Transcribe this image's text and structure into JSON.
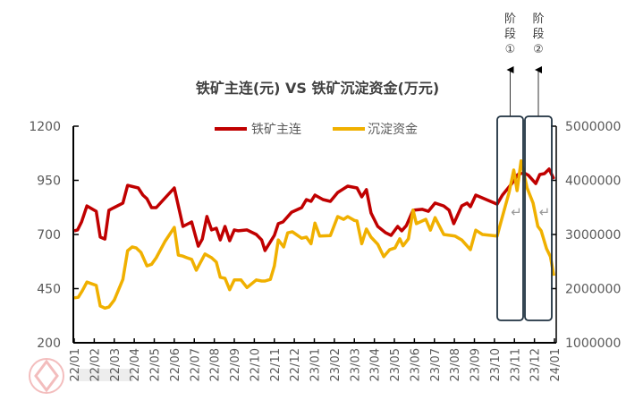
{
  "chart_data": {
    "type": "line",
    "title": "铁矿主连(元) VS 铁矿沉淀资金(万元)",
    "xlabel": "",
    "ylabel": "",
    "y2label": "",
    "legend_position": "top",
    "grid": false,
    "x_tick_labels": [
      "22/01",
      "22/02",
      "22/03",
      "22/04",
      "22/05",
      "22/06",
      "22/07",
      "22/08",
      "22/09",
      "22/10",
      "22/11",
      "22/12",
      "23/01",
      "23/02",
      "23/03",
      "23/04",
      "23/05",
      "23/06",
      "23/07",
      "23/08",
      "23/09",
      "23/10",
      "23/11",
      "23/12",
      "24/01"
    ],
    "ylim": [
      200,
      1200
    ],
    "y_ticks": [
      "200",
      "450",
      "700",
      "950",
      "1200"
    ],
    "y2lim": [
      1000000,
      5000000
    ],
    "y2_ticks": [
      "1000000",
      "2000000",
      "3000000",
      "4000000",
      "5000000"
    ],
    "series": [
      {
        "name": "铁矿主连",
        "axis": "left",
        "color": "#C00000",
        "x": [
          "2022-01-01",
          "2022-01-06",
          "2022-01-12",
          "2022-01-20",
          "2022-02-04",
          "2022-02-10",
          "2022-02-17",
          "2022-02-23",
          "2022-03-14",
          "2022-03-21",
          "2022-04-07",
          "2022-04-14",
          "2022-04-20",
          "2022-04-27",
          "2022-05-04",
          "2022-05-15",
          "2022-06-01",
          "2022-06-14",
          "2022-06-27",
          "2022-07-07",
          "2022-07-13",
          "2022-07-20",
          "2022-07-27",
          "2022-08-04",
          "2022-08-10",
          "2022-08-17",
          "2022-08-24",
          "2022-08-31",
          "2022-09-07",
          "2022-09-20",
          "2022-10-04",
          "2022-10-12",
          "2022-10-17",
          "2022-11-01",
          "2022-11-07",
          "2022-11-14",
          "2022-11-27",
          "2022-12-12",
          "2022-12-19",
          "2022-12-26",
          "2023-01-02",
          "2023-01-14",
          "2023-01-25",
          "2023-02-06",
          "2023-02-21",
          "2023-03-05",
          "2023-03-12",
          "2023-03-19",
          "2023-03-26",
          "2023-04-06",
          "2023-04-18",
          "2023-04-26",
          "2023-05-06",
          "2023-05-12",
          "2023-05-19",
          "2023-05-29",
          "2023-06-13",
          "2023-06-22",
          "2023-07-02",
          "2023-07-15",
          "2023-07-23",
          "2023-07-30",
          "2023-08-12",
          "2023-08-20",
          "2023-08-25",
          "2023-09-03",
          "2023-09-16",
          "2023-10-05",
          "2023-10-13",
          "2023-10-27",
          "2023-11-06",
          "2023-11-15",
          "2023-11-22",
          "2023-12-03",
          "2023-12-09",
          "2023-12-16",
          "2023-12-23",
          "2023-12-30"
        ],
        "y": [
          717,
          721,
          758,
          832,
          807,
          688,
          679,
          812,
          845,
          927,
          915,
          882,
          865,
          824,
          824,
          861,
          915,
          737,
          758,
          646,
          679,
          783,
          721,
          729,
          675,
          737,
          671,
          721,
          717,
          721,
          700,
          675,
          626,
          696,
          750,
          758,
          803,
          824,
          861,
          853,
          882,
          861,
          853,
          894,
          923,
          915,
          874,
          907,
          799,
          737,
          708,
          696,
          737,
          717,
          741,
          812,
          816,
          807,
          845,
          832,
          812,
          750,
          832,
          845,
          828,
          882,
          865,
          840,
          882,
          935,
          977,
          985,
          973,
          935,
          977,
          981,
          1002,
          956
        ]
      },
      {
        "name": "沉淀资金",
        "axis": "right",
        "color": "#F0B000",
        "x": [
          "2022-01-01",
          "2022-01-07",
          "2022-01-13",
          "2022-01-20",
          "2022-02-04",
          "2022-02-10",
          "2022-02-17",
          "2022-02-23",
          "2022-03-01",
          "2022-03-14",
          "2022-03-21",
          "2022-03-28",
          "2022-04-04",
          "2022-04-11",
          "2022-04-20",
          "2022-04-27",
          "2022-05-04",
          "2022-05-17",
          "2022-06-01",
          "2022-06-07",
          "2022-06-14",
          "2022-06-20",
          "2022-06-27",
          "2022-07-04",
          "2022-07-17",
          "2022-07-27",
          "2022-08-04",
          "2022-08-10",
          "2022-08-17",
          "2022-08-24",
          "2022-08-31",
          "2022-09-11",
          "2022-09-20",
          "2022-10-04",
          "2022-10-12",
          "2022-10-17",
          "2022-10-25",
          "2022-11-01",
          "2022-11-07",
          "2022-11-15",
          "2022-11-21",
          "2022-11-28",
          "2022-12-12",
          "2022-12-19",
          "2022-12-26",
          "2023-01-02",
          "2023-01-09",
          "2023-01-25",
          "2023-02-06",
          "2023-02-15",
          "2023-02-21",
          "2023-03-01",
          "2023-03-05",
          "2023-03-12",
          "2023-03-19",
          "2023-03-26",
          "2023-04-06",
          "2023-04-15",
          "2023-04-24",
          "2023-05-02",
          "2023-05-09",
          "2023-05-14",
          "2023-05-22",
          "2023-05-29",
          "2023-06-04",
          "2023-06-18",
          "2023-06-25",
          "2023-07-02",
          "2023-07-15",
          "2023-08-02",
          "2023-08-12",
          "2023-08-25",
          "2023-09-03",
          "2023-09-13",
          "2023-10-05",
          "2023-10-09",
          "2023-10-23",
          "2023-10-30",
          "2023-11-05",
          "2023-11-11",
          "2023-11-20",
          "2023-11-29",
          "2023-12-06",
          "2023-12-11",
          "2023-12-19",
          "2023-12-25",
          "2023-12-30"
        ],
        "y": [
          1830000,
          1840000,
          1960000,
          2120000,
          2060000,
          1680000,
          1640000,
          1660000,
          1790000,
          2170000,
          2700000,
          2770000,
          2750000,
          2670000,
          2420000,
          2450000,
          2570000,
          2870000,
          3130000,
          2620000,
          2600000,
          2570000,
          2540000,
          2340000,
          2640000,
          2570000,
          2490000,
          2210000,
          2190000,
          1980000,
          2160000,
          2160000,
          2020000,
          2160000,
          2140000,
          2140000,
          2170000,
          2420000,
          2900000,
          2770000,
          3030000,
          3050000,
          2930000,
          2950000,
          2830000,
          3210000,
          2970000,
          2980000,
          3330000,
          3280000,
          3330000,
          3260000,
          3250000,
          2830000,
          3100000,
          2950000,
          2820000,
          2590000,
          2720000,
          2750000,
          2920000,
          2790000,
          2920000,
          3450000,
          3200000,
          3280000,
          3080000,
          3310000,
          3000000,
          2970000,
          2900000,
          2720000,
          3080000,
          3000000,
          2970000,
          3150000,
          3780000,
          4190000,
          3810000,
          4360000,
          3860000,
          3580000,
          3150000,
          3070000,
          2740000,
          2590000,
          2240000
        ]
      }
    ],
    "annotations": [
      {
        "label_lines": [
          "阶",
          "段",
          "①"
        ],
        "mark": "↵",
        "range": [
          "2023-10-15",
          "2023-11-30"
        ]
      },
      {
        "label_lines": [
          "阶",
          "段",
          "②"
        ],
        "mark": "↵",
        "range": [
          "2023-12-01",
          "2024-01-01"
        ]
      }
    ],
    "watermark": "盛达期货"
  }
}
